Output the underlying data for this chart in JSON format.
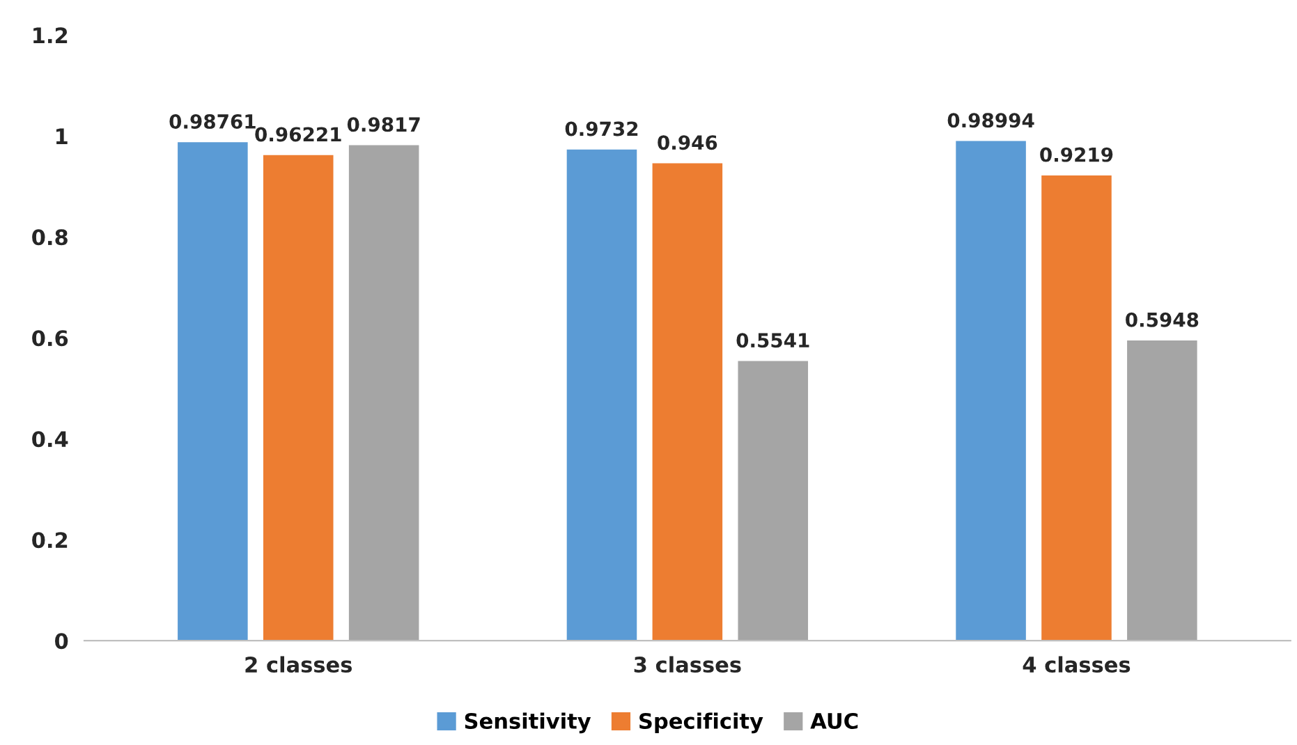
{
  "chart_data": {
    "type": "bar",
    "categories": [
      "2 classes",
      "3 classes",
      "4 classes"
    ],
    "series": [
      {
        "name": "Sensitivity",
        "color": "#5b9bd5",
        "values": [
          0.98761,
          0.9732,
          0.98994
        ]
      },
      {
        "name": "Specificity",
        "color": "#ed7d31",
        "values": [
          0.96221,
          0.946,
          0.9219
        ]
      },
      {
        "name": "AUC",
        "color": "#a5a5a5",
        "values": [
          0.9817,
          0.5541,
          0.5948
        ]
      }
    ],
    "ylim": [
      0,
      1.2
    ],
    "yticks": [
      0,
      0.2,
      0.4,
      0.6,
      0.8,
      1,
      1.2
    ],
    "grid": false,
    "legend": "bottom",
    "data_labels": true
  }
}
